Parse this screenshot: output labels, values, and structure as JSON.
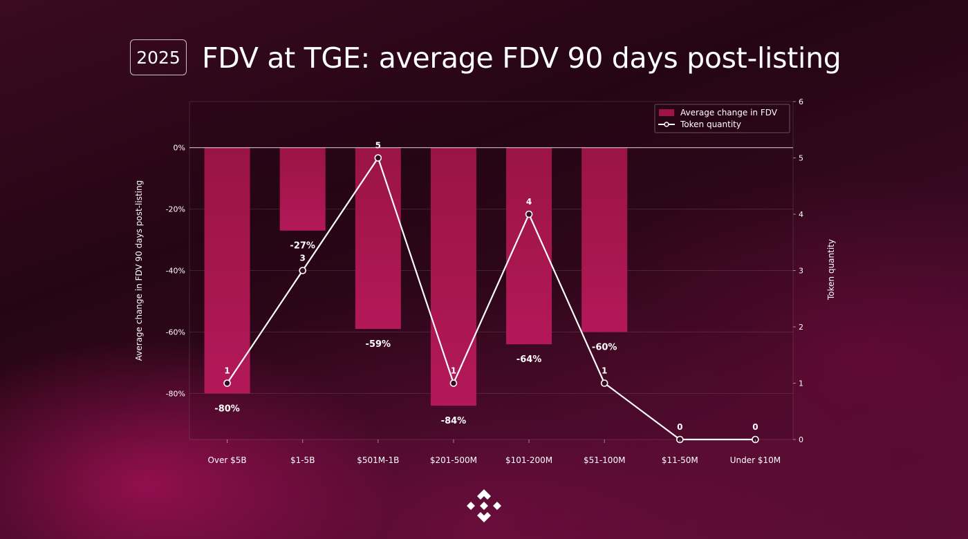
{
  "header": {
    "year_badge": "2025",
    "title": "FDV at TGE: average FDV 90 days post-listing"
  },
  "chart_data": {
    "type": "bar",
    "categories": [
      "Over $5B",
      "$1-5B",
      "$501M-1B",
      "$201-500M",
      "$101-200M",
      "$51-100M",
      "$11-50M",
      "Under $10M"
    ],
    "series": [
      {
        "name": "Average change in FDV",
        "type": "bar",
        "axis": "left",
        "values": [
          -80,
          -27,
          -59,
          -84,
          -64,
          -60,
          null,
          null
        ],
        "data_labels": [
          "-80%",
          "-27%",
          "-59%",
          "-84%",
          "-64%",
          "-60%",
          "",
          ""
        ]
      },
      {
        "name": "Token quantity",
        "type": "line",
        "axis": "right",
        "values": [
          1,
          3,
          5,
          1,
          4,
          1,
          0,
          0
        ],
        "data_labels": [
          "1",
          "3",
          "5",
          "1",
          "4",
          "1",
          "0",
          "0"
        ]
      }
    ],
    "ylabel": "Average change in FDV 90 days post-listing",
    "y2label": "Token quantity",
    "ylim": [
      -95,
      15
    ],
    "y2lim": [
      0,
      6
    ],
    "yticks": [
      "0%",
      "-20%",
      "-40%",
      "-60%",
      "-80%"
    ],
    "yticks_values": [
      0,
      -20,
      -40,
      -60,
      -80
    ],
    "y2ticks": [
      "0",
      "1",
      "2",
      "3",
      "4",
      "5",
      "6"
    ],
    "y2ticks_values": [
      0,
      1,
      2,
      3,
      4,
      5,
      6
    ],
    "grid": true,
    "legend_position": "top-right",
    "colors": {
      "bar": "#9c1446",
      "line": "#ffffff",
      "marker_fill": "#3a0a22"
    }
  }
}
